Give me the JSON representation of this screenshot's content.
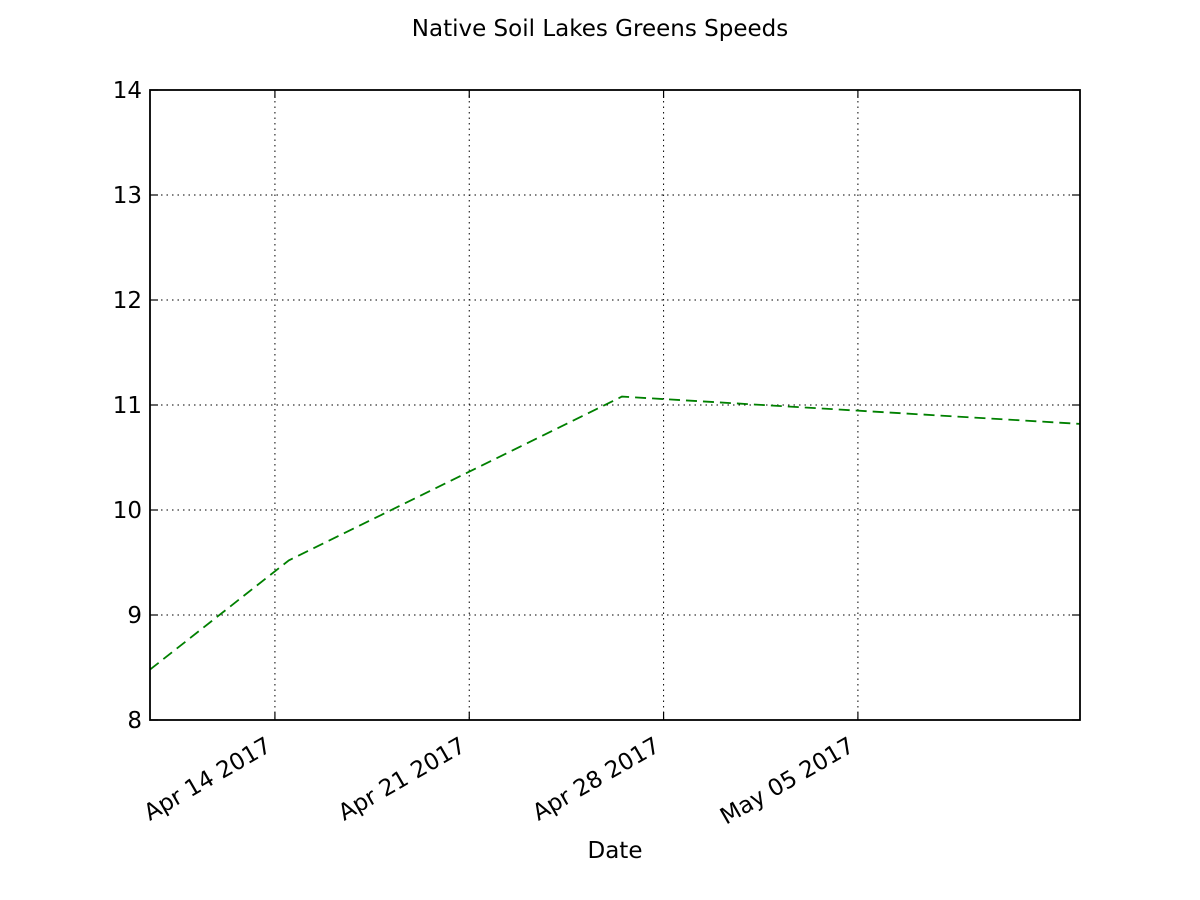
{
  "chart_data": {
    "type": "line",
    "title": "Native Soil Lakes Greens Speeds",
    "xlabel": "Date",
    "ylabel": "",
    "x_scale": "date",
    "xlim": [
      "2017-04-09T12:00",
      "2017-05-13"
    ],
    "ylim": [
      8,
      14
    ],
    "grid": true,
    "legend": "none",
    "x_ticks": [
      {
        "date": "2017-04-14",
        "label": "Apr 14 2017"
      },
      {
        "date": "2017-04-21",
        "label": "Apr 21 2017"
      },
      {
        "date": "2017-04-28",
        "label": "Apr 28 2017"
      },
      {
        "date": "2017-05-05",
        "label": "May 05 2017"
      }
    ],
    "y_ticks": [
      {
        "value": 8,
        "label": "8"
      },
      {
        "value": 9,
        "label": "9"
      },
      {
        "value": 10,
        "label": "10"
      },
      {
        "value": 11,
        "label": "11"
      },
      {
        "value": 12,
        "label": "12"
      },
      {
        "value": 13,
        "label": "13"
      },
      {
        "value": 14,
        "label": "14"
      }
    ],
    "series": [
      {
        "color": "#008000",
        "line_style": "dashed",
        "points": [
          {
            "x": "2017-04-09T12:00",
            "y": 8.48
          },
          {
            "x": "2017-04-14T12:00",
            "y": 9.52
          },
          {
            "x": "2017-04-26T12:00",
            "y": 11.08
          },
          {
            "x": "2017-05-13",
            "y": 10.82
          }
        ]
      }
    ]
  }
}
